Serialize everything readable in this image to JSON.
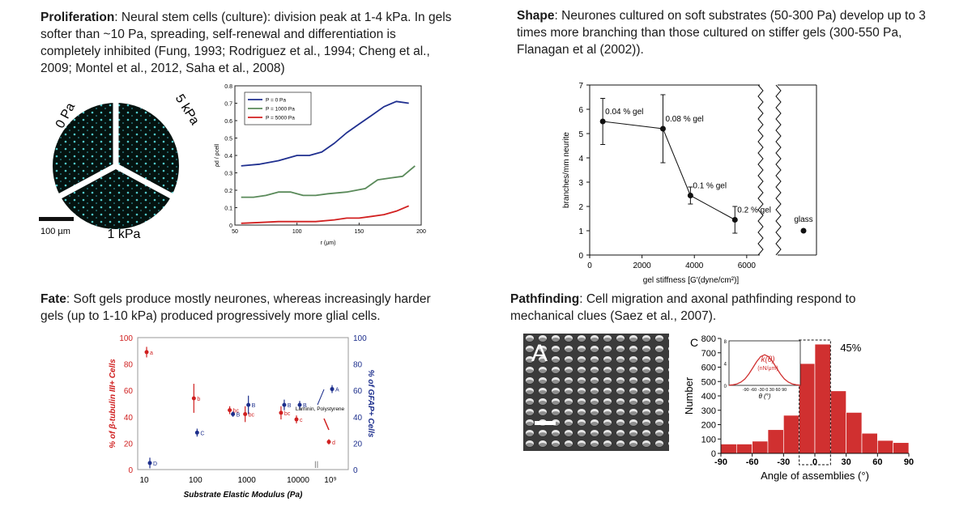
{
  "panels": {
    "proliferation": {
      "heading": "Proliferation",
      "body": ": Neural stem cells (culture): division peak at 1-4 kPa. In gels softer than ~10 Pa, spreading, self-renewal and differentiation is completely inhibited (Fung, 1993; Rodriguez et al., 1994; Cheng et al., 2009; Montel et al., 2012, Saha et al., 2008)",
      "images": {
        "labels": [
          "0 Pa",
          "5 kPa",
          "1 kPa"
        ],
        "scalebar": "100 µm"
      }
    },
    "shape": {
      "heading": "Shape",
      "body": ": Neurones cultured on soft substrates (50-300 Pa) develop up to 3 times more branching than those cultured on stiffer gels (300-550 Pa, Flanagan et al (2002))."
    },
    "fate": {
      "heading": "Fate",
      "body": ": Soft gels produce mostly neurones, whereas increasingly harder gels (up to 1-10 kPa) produced progressively more glial cells."
    },
    "pathfinding": {
      "heading": "Pathfinding",
      "body": ": Cell migration and axonal pathfinding respond to mechanical clues (Saez et al., 2007).",
      "image_label": "A",
      "panel_label": "C"
    }
  },
  "chart_data": [
    {
      "id": "density",
      "type": "line",
      "xlabel": "r (μm)",
      "ylabel": "ρd / ρcell",
      "xlim": [
        50,
        200
      ],
      "ylim": [
        0,
        0.8
      ],
      "xticks": [
        "50",
        "100",
        "150",
        "200"
      ],
      "yticks": [
        "0",
        "0.1",
        "0.2",
        "0.3",
        "0.4",
        "0.5",
        "0.6",
        "0.7",
        "0.8"
      ],
      "legend": "top-left",
      "series": [
        {
          "name": "P = 0 Pa",
          "color": "#1f2f8f",
          "x": [
            55,
            70,
            85,
            100,
            110,
            120,
            130,
            140,
            150,
            160,
            170,
            180,
            190
          ],
          "y": [
            0.34,
            0.35,
            0.37,
            0.4,
            0.4,
            0.42,
            0.47,
            0.53,
            0.58,
            0.63,
            0.68,
            0.71,
            0.7
          ]
        },
        {
          "name": "P = 1000 Pa",
          "color": "#5a8a5a",
          "x": [
            55,
            65,
            75,
            85,
            95,
            105,
            115,
            125,
            140,
            155,
            165,
            175,
            185,
            195
          ],
          "y": [
            0.16,
            0.16,
            0.17,
            0.19,
            0.19,
            0.17,
            0.17,
            0.18,
            0.19,
            0.21,
            0.26,
            0.27,
            0.28,
            0.34
          ]
        },
        {
          "name": "P = 5000 Pa",
          "color": "#d22020",
          "x": [
            55,
            70,
            85,
            100,
            115,
            130,
            140,
            150,
            160,
            170,
            180,
            190
          ],
          "y": [
            0.01,
            0.015,
            0.02,
            0.02,
            0.02,
            0.03,
            0.04,
            0.04,
            0.05,
            0.06,
            0.08,
            0.11
          ]
        }
      ]
    },
    {
      "id": "branching",
      "type": "line",
      "xlabel": "gel stiffness [G′(dyne/cm²)]",
      "ylabel": "branches/mm neurite",
      "xlim": [
        0,
        6500
      ],
      "ylim": [
        0,
        7
      ],
      "xticks": [
        "0",
        "2000",
        "4000",
        "6000"
      ],
      "yticks": [
        "0",
        "1",
        "2",
        "3",
        "4",
        "5",
        "6",
        "7"
      ],
      "points": [
        {
          "x": 500,
          "y": 5.5,
          "err": 0.95,
          "label": "0.04 % gel"
        },
        {
          "x": 2800,
          "y": 5.2,
          "err": 1.4,
          "label": "0.08 % gel"
        },
        {
          "x": 3850,
          "y": 2.45,
          "err": 0.35,
          "label": "0.1 % gel"
        },
        {
          "x": 5550,
          "y": 1.45,
          "err": 0.55,
          "label": "0.2 % gel"
        }
      ],
      "glass": {
        "label": "glass",
        "y": 1.0
      }
    },
    {
      "id": "fate",
      "type": "scatter",
      "xlabel": "Substrate Elastic Modulus (Pa)",
      "ylabel_left": "% of β-tubulin III+ Cells",
      "ylabel_right": "% of GFAP+ Cells",
      "xscale": "log",
      "xticks": [
        "10",
        "100",
        "1000",
        "10000",
        "10⁹"
      ],
      "ylim": [
        0,
        100
      ],
      "yticks": [
        "0",
        "20",
        "40",
        "60",
        "80",
        "100"
      ],
      "annotation": "Laminin, Polystyrene",
      "series": [
        {
          "name": "β-tubulin III",
          "color": "#d02020",
          "points": [
            {
              "x": 12,
              "y": 89,
              "err": 4,
              "label": "a"
            },
            {
              "x": 100,
              "y": 54,
              "err": 11,
              "label": "b"
            },
            {
              "x": 500,
              "y": 45,
              "err": 3,
              "label": "bc"
            },
            {
              "x": 1000,
              "y": 42,
              "err": 6,
              "label": "bc"
            },
            {
              "x": 5000,
              "y": 43,
              "err": 5,
              "label": "bc"
            },
            {
              "x": 10000,
              "y": 38,
              "err": 3,
              "label": "c"
            },
            {
              "x": "glass",
              "y": 21,
              "err": 2,
              "label": "d"
            }
          ]
        },
        {
          "name": "GFAP",
          "color": "#1c2e8c",
          "points": [
            {
              "x": 12,
              "y": 5,
              "err": 4,
              "label": "D"
            },
            {
              "x": 100,
              "y": 28,
              "err": 3,
              "label": "C"
            },
            {
              "x": 500,
              "y": 42,
              "err": 2,
              "label": "B"
            },
            {
              "x": 1000,
              "y": 49,
              "err": 7,
              "label": "B"
            },
            {
              "x": 5000,
              "y": 49,
              "err": 4,
              "label": "B"
            },
            {
              "x": 10000,
              "y": 49,
              "err": 3,
              "label": "B"
            },
            {
              "x": "glass",
              "y": 61,
              "err": 3,
              "label": "A"
            }
          ]
        }
      ]
    },
    {
      "id": "angles",
      "type": "bar",
      "xlabel": "Angle of assemblies (°)",
      "ylabel": "Number",
      "xlim": [
        -90,
        90
      ],
      "ylim": [
        0,
        800
      ],
      "xticks": [
        "-90",
        "-60",
        "-30",
        "0",
        "30",
        "60",
        "90"
      ],
      "yticks": [
        "0",
        "100",
        "200",
        "300",
        "400",
        "500",
        "600",
        "700",
        "800"
      ],
      "bin_width": 15,
      "bin_starts": [
        -90,
        -75,
        -60,
        -45,
        -30,
        -15,
        0,
        15,
        30,
        45,
        60,
        75
      ],
      "values": [
        65,
        65,
        85,
        165,
        265,
        625,
        760,
        435,
        285,
        140,
        90,
        75
      ],
      "color": "#d03030",
      "highlight_range": [
        -15,
        15
      ],
      "highlight_label": "45%",
      "inset": {
        "xlabel": "θ (°)",
        "ylabel_text": "k(θ)",
        "unit": "(nN/μm)",
        "xticks": [
          "-90",
          "-60",
          "-30",
          "0",
          "30",
          "60",
          "90"
        ],
        "yticks": [
          "0",
          "4",
          "8"
        ],
        "peak": 5.5
      }
    }
  ]
}
